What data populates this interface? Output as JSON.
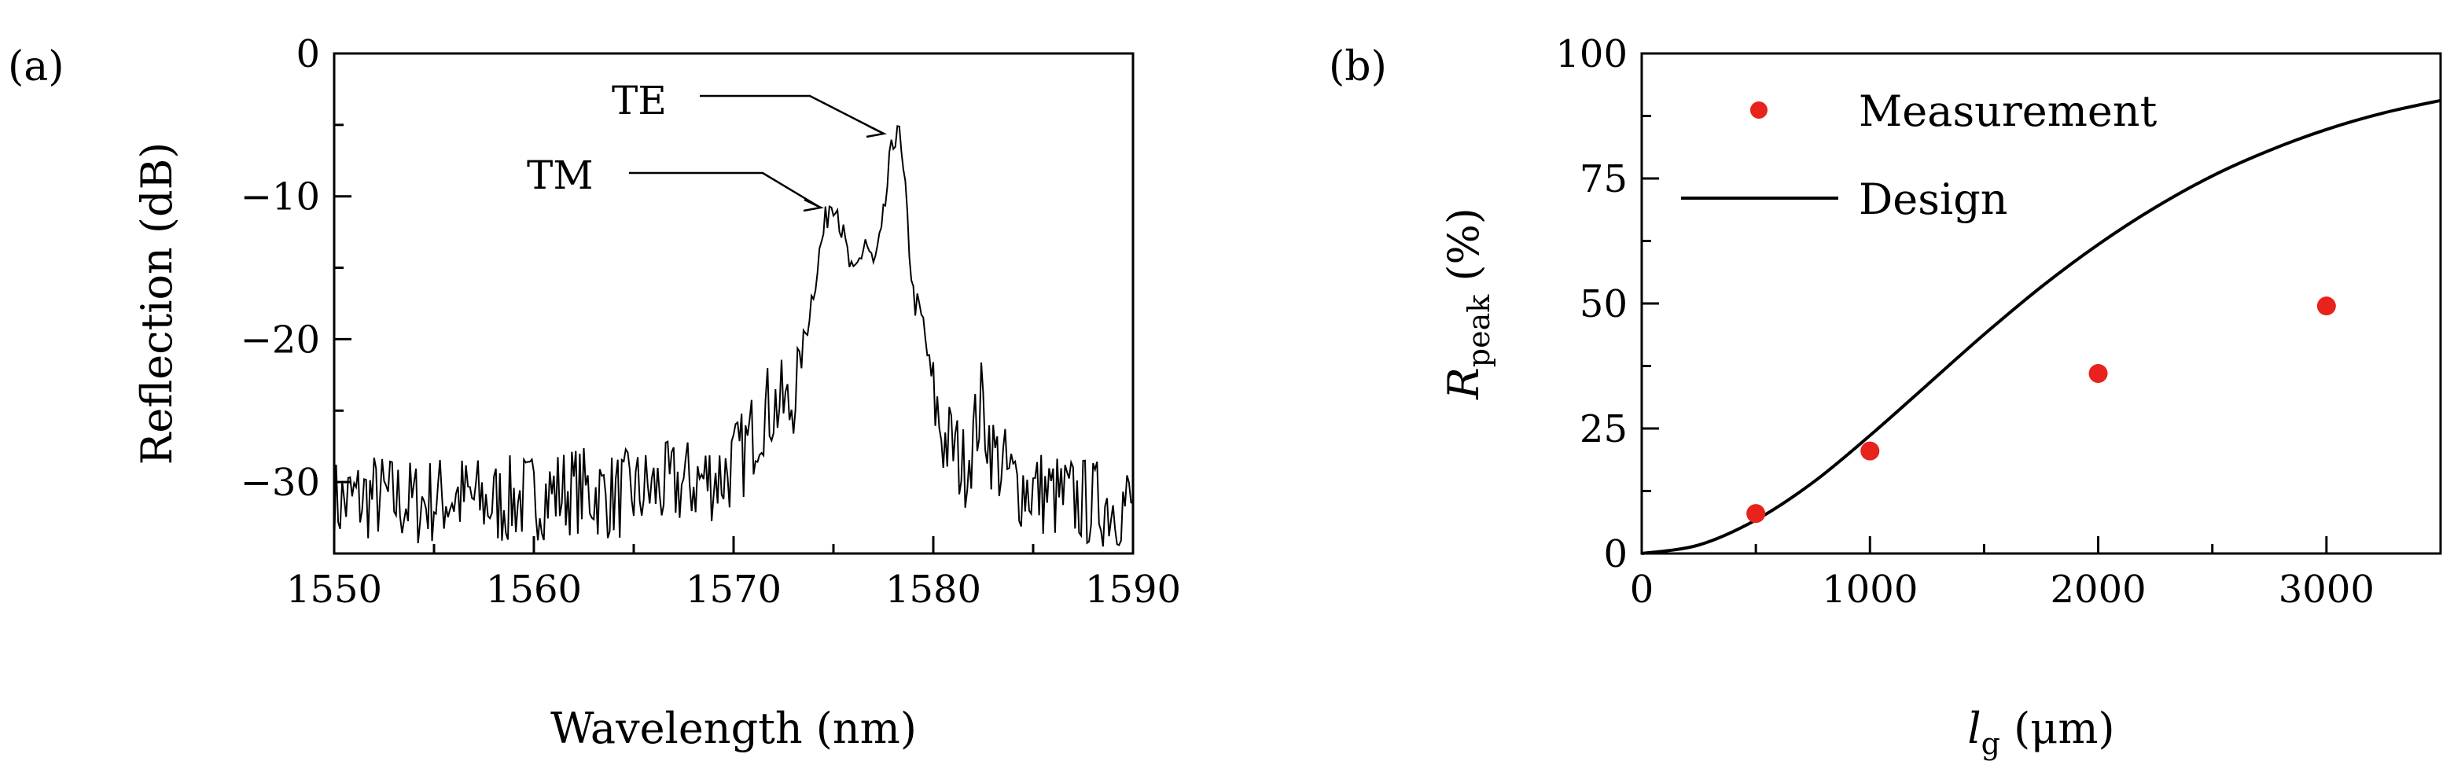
{
  "chart_data": [
    {
      "panel": "(a)",
      "type": "line",
      "xlabel": "Wavelength (nm)",
      "ylabel": "Reflection (dB)",
      "xlim": [
        1550,
        1590
      ],
      "ylim": [
        -35,
        0
      ],
      "xticks": [
        1550,
        1560,
        1570,
        1580,
        1590
      ],
      "yticks": [
        0,
        -10,
        -20,
        -30
      ],
      "ytick_labels": [
        "0",
        "−10",
        "−20",
        "−30"
      ],
      "series": [
        {
          "x": [
            1550,
            1552,
            1554,
            1556,
            1558,
            1560,
            1562,
            1564,
            1566,
            1568,
            1569.5,
            1570.5,
            1571.5,
            1572.3,
            1572.8,
            1573.3,
            1573.8,
            1574.3,
            1574.8,
            1575.1,
            1575.5,
            1576.0,
            1576.6,
            1577.0,
            1577.4,
            1577.8,
            1578.2,
            1578.6,
            1579.0,
            1579.5,
            1580.0,
            1580.5,
            1581.0,
            1581.5,
            1582.0,
            1582.4,
            1583.0,
            1584,
            1586,
            1588,
            1590
          ],
          "y": [
            -31.5,
            -31,
            -31.5,
            -31,
            -31.5,
            -31,
            -30.5,
            -31,
            -30.5,
            -30,
            -29.5,
            -28,
            -25,
            -24.5,
            -25,
            -22,
            -18,
            -14,
            -10.5,
            -10,
            -13,
            -16,
            -13,
            -15,
            -13,
            -8,
            -4.7,
            -10,
            -17,
            -19,
            -24,
            -27,
            -27.5,
            -29,
            -27,
            -24.5,
            -28,
            -30,
            -31,
            -31.5,
            -31.5
          ]
        }
      ],
      "annotations": [
        "TE",
        "TM"
      ]
    },
    {
      "panel": "(b)",
      "type": "scatter",
      "xlabel": "l_g (μm)",
      "ylabel": "R_peak (%)",
      "xlim": [
        0,
        3500
      ],
      "ylim": [
        0,
        100
      ],
      "xticks": [
        0,
        1000,
        2000,
        3000
      ],
      "yticks": [
        0,
        25,
        50,
        75,
        100
      ],
      "legend": "top-left",
      "series": [
        {
          "name": "Measurement",
          "kind": "scatter",
          "color": "#e8221c",
          "x": [
            500,
            1000,
            2000,
            3000
          ],
          "y": [
            8,
            20.5,
            36,
            49.5
          ]
        },
        {
          "name": "Design",
          "kind": "line",
          "color": "#000000",
          "x": [
            0,
            250,
            500,
            750,
            1000,
            1250,
            1500,
            1750,
            2000,
            2250,
            2500,
            2750,
            3000,
            3250,
            3500
          ],
          "y": [
            0,
            1.7,
            6.7,
            14.2,
            23.6,
            33.7,
            43.8,
            53.3,
            61.8,
            69.2,
            75.5,
            80.6,
            84.8,
            88.1,
            90.6
          ]
        }
      ]
    }
  ],
  "panels": {
    "a": {
      "label": "(a)",
      "te": "TE",
      "tm": "TM"
    },
    "b": {
      "label": "(b)",
      "ylabel_main": "R",
      "ylabel_sub": "peak",
      "ylabel_unit": " (%)",
      "xlabel_main": "l",
      "xlabel_sub": "g",
      "xlabel_unit": " (μm)"
    }
  }
}
